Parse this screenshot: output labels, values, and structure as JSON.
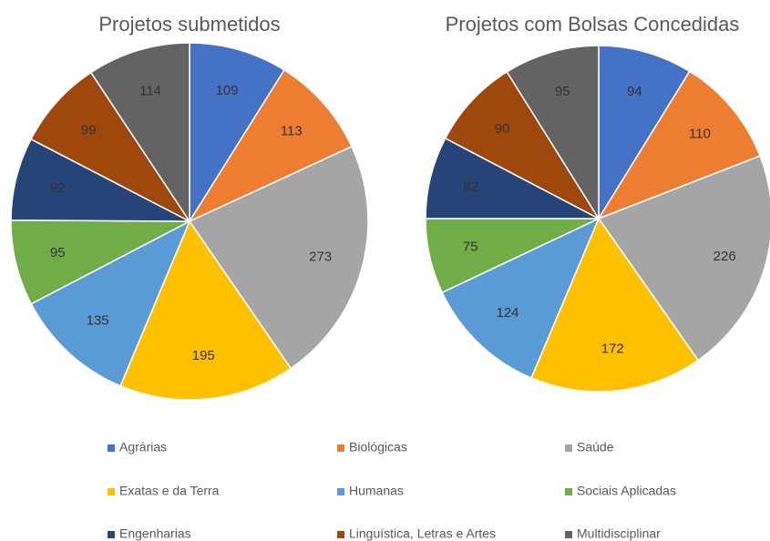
{
  "chart_data": [
    {
      "type": "pie",
      "title": "Projetos submetidos",
      "categories": [
        "Agrárias",
        "Biológicas",
        "Saúde",
        "Exatas e da Terra",
        "Humanas",
        "Sociais Aplicadas",
        "Engenharias",
        "Linguística, Letras e Artes",
        "Multidisciplinar"
      ],
      "values": [
        109,
        113,
        273,
        195,
        135,
        95,
        92,
        99,
        114
      ],
      "colors": [
        "#4472c4",
        "#ed7d31",
        "#a5a5a5",
        "#ffc000",
        "#5b9bd5",
        "#70ad47",
        "#264478",
        "#9e480e",
        "#636363"
      ]
    },
    {
      "type": "pie",
      "title": "Projetos com Bolsas Concedidas",
      "values": [
        94,
        110,
        226,
        172,
        124,
        75,
        82,
        90,
        95
      ],
      "colors": [
        "#4472c4",
        "#ed7d31",
        "#a5a5a5",
        "#ffc000",
        "#5b9bd5",
        "#70ad47",
        "#264478",
        "#9e480e",
        "#636363"
      ]
    }
  ]
}
